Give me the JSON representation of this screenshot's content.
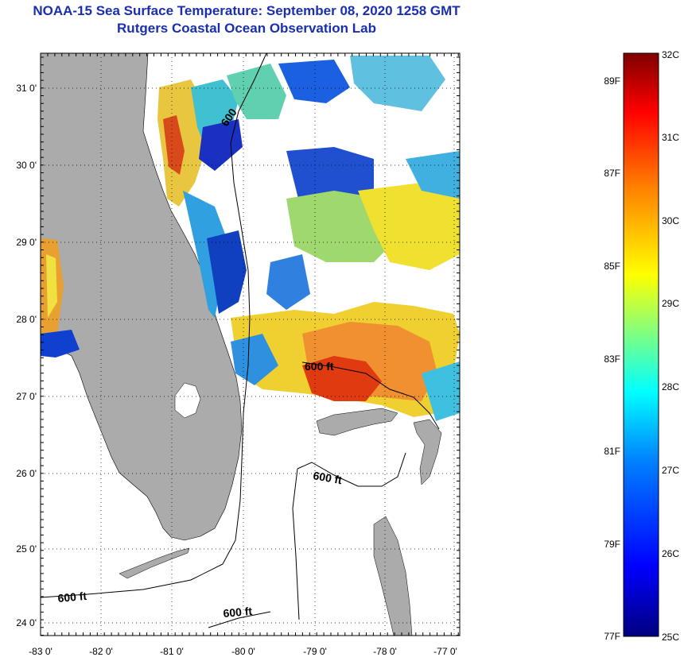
{
  "title": {
    "line1": "NOAA-15 Sea Surface Temperature:  September 08, 2020 1258 GMT",
    "line2": "Rutgers Coastal Ocean Observation Lab"
  },
  "axes": {
    "lat_labels": [
      "31 0'",
      "30 0'",
      "29 0'",
      "28 0'",
      "27 0'",
      "26 0'",
      "25 0'",
      "24 0'"
    ],
    "lon_labels": [
      "-83 0'",
      "-82 0'",
      "-81 0'",
      "-80 0'",
      "-79 0'",
      "-78 0'",
      "-77 0'"
    ]
  },
  "contours": {
    "label": "600 ft",
    "rotated_label": "600"
  },
  "colorbar": {
    "celsius_labels": [
      "32C",
      "31C",
      "30C",
      "29C",
      "28C",
      "27C",
      "26C",
      "25C"
    ],
    "fahrenheit_labels": [
      "89F",
      "87F",
      "85F",
      "83F",
      "81F",
      "79F",
      "77F"
    ],
    "colors": [
      "#00007f",
      "#0000ff",
      "#0080ff",
      "#00ffff",
      "#80ff80",
      "#ffff00",
      "#ff8000",
      "#ff0000",
      "#7f0000"
    ]
  },
  "colors": {
    "land": "#ababab",
    "title": "#1a2fb0"
  }
}
